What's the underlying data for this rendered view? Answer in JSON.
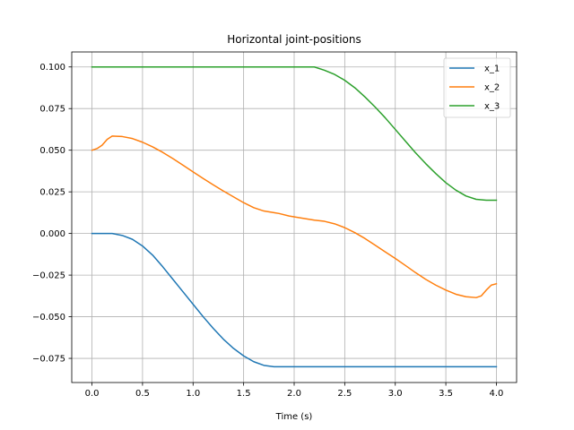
{
  "chart_data": {
    "type": "line",
    "title": "Horizontal joint-positions",
    "xlabel": "Time (s)",
    "ylabel": "",
    "xlim": [
      -0.2,
      4.2
    ],
    "ylim": [
      -0.0895,
      0.109
    ],
    "xticks": [
      0.0,
      0.5,
      1.0,
      1.5,
      2.0,
      2.5,
      3.0,
      3.5,
      4.0
    ],
    "xtick_labels": [
      "0.0",
      "0.5",
      "1.0",
      "1.5",
      "2.0",
      "2.5",
      "3.0",
      "3.5",
      "4.0"
    ],
    "yticks": [
      -0.075,
      -0.05,
      -0.025,
      0.0,
      0.025,
      0.05,
      0.075,
      0.1
    ],
    "ytick_labels": [
      "−0.075",
      "−0.050",
      "−0.025",
      "0.000",
      "0.025",
      "0.050",
      "0.075",
      "0.100"
    ],
    "grid": true,
    "legend_position": "top-right",
    "series": [
      {
        "name": "x_1",
        "color": "#1f77b4",
        "points": [
          [
            0.0,
            0.0
          ],
          [
            0.1,
            0.0
          ],
          [
            0.2,
            0.0
          ],
          [
            0.3,
            -0.0012
          ],
          [
            0.4,
            -0.0035
          ],
          [
            0.5,
            -0.0075
          ],
          [
            0.6,
            -0.013
          ],
          [
            0.7,
            -0.02
          ],
          [
            0.8,
            -0.0275
          ],
          [
            0.9,
            -0.035
          ],
          [
            1.0,
            -0.0425
          ],
          [
            1.1,
            -0.05
          ],
          [
            1.2,
            -0.057
          ],
          [
            1.3,
            -0.0635
          ],
          [
            1.4,
            -0.069
          ],
          [
            1.5,
            -0.0735
          ],
          [
            1.6,
            -0.077
          ],
          [
            1.7,
            -0.0792
          ],
          [
            1.8,
            -0.08
          ],
          [
            2.0,
            -0.08
          ],
          [
            2.5,
            -0.08
          ],
          [
            3.0,
            -0.08
          ],
          [
            3.5,
            -0.08
          ],
          [
            4.0,
            -0.08
          ]
        ]
      },
      {
        "name": "x_2",
        "color": "#ff7f0e",
        "points": [
          [
            0.0,
            0.05
          ],
          [
            0.05,
            0.051
          ],
          [
            0.1,
            0.053
          ],
          [
            0.15,
            0.0565
          ],
          [
            0.2,
            0.0585
          ],
          [
            0.3,
            0.0582
          ],
          [
            0.4,
            0.057
          ],
          [
            0.5,
            0.0548
          ],
          [
            0.6,
            0.052
          ],
          [
            0.7,
            0.0487
          ],
          [
            0.8,
            0.045
          ],
          [
            0.9,
            0.041
          ],
          [
            1.0,
            0.037
          ],
          [
            1.1,
            0.033
          ],
          [
            1.2,
            0.0292
          ],
          [
            1.3,
            0.0255
          ],
          [
            1.4,
            0.022
          ],
          [
            1.5,
            0.0185
          ],
          [
            1.6,
            0.0155
          ],
          [
            1.7,
            0.0135
          ],
          [
            1.8,
            0.0125
          ],
          [
            1.85,
            0.012
          ],
          [
            1.95,
            0.0105
          ],
          [
            2.05,
            0.0095
          ],
          [
            2.2,
            0.008
          ],
          [
            2.3,
            0.0073
          ],
          [
            2.4,
            0.0058
          ],
          [
            2.5,
            0.0035
          ],
          [
            2.6,
            0.0005
          ],
          [
            2.7,
            -0.003
          ],
          [
            2.8,
            -0.007
          ],
          [
            2.9,
            -0.011
          ],
          [
            3.0,
            -0.015
          ],
          [
            3.1,
            -0.0192
          ],
          [
            3.2,
            -0.0235
          ],
          [
            3.3,
            -0.0275
          ],
          [
            3.4,
            -0.031
          ],
          [
            3.5,
            -0.034
          ],
          [
            3.6,
            -0.0365
          ],
          [
            3.7,
            -0.038
          ],
          [
            3.8,
            -0.0385
          ],
          [
            3.85,
            -0.0375
          ],
          [
            3.9,
            -0.034
          ],
          [
            3.95,
            -0.031
          ],
          [
            4.0,
            -0.0302
          ]
        ]
      },
      {
        "name": "x_3",
        "color": "#2ca02c",
        "points": [
          [
            0.0,
            0.1
          ],
          [
            0.5,
            0.1
          ],
          [
            1.0,
            0.1
          ],
          [
            1.5,
            0.1
          ],
          [
            2.0,
            0.1
          ],
          [
            2.2,
            0.1
          ],
          [
            2.3,
            0.098
          ],
          [
            2.4,
            0.0955
          ],
          [
            2.5,
            0.092
          ],
          [
            2.6,
            0.0875
          ],
          [
            2.7,
            0.082
          ],
          [
            2.8,
            0.076
          ],
          [
            2.9,
            0.0695
          ],
          [
            3.0,
            0.0625
          ],
          [
            3.1,
            0.0555
          ],
          [
            3.2,
            0.0485
          ],
          [
            3.3,
            0.042
          ],
          [
            3.4,
            0.036
          ],
          [
            3.5,
            0.0305
          ],
          [
            3.6,
            0.026
          ],
          [
            3.7,
            0.0225
          ],
          [
            3.8,
            0.0205
          ],
          [
            3.9,
            0.02
          ],
          [
            4.0,
            0.02
          ]
        ]
      }
    ]
  }
}
